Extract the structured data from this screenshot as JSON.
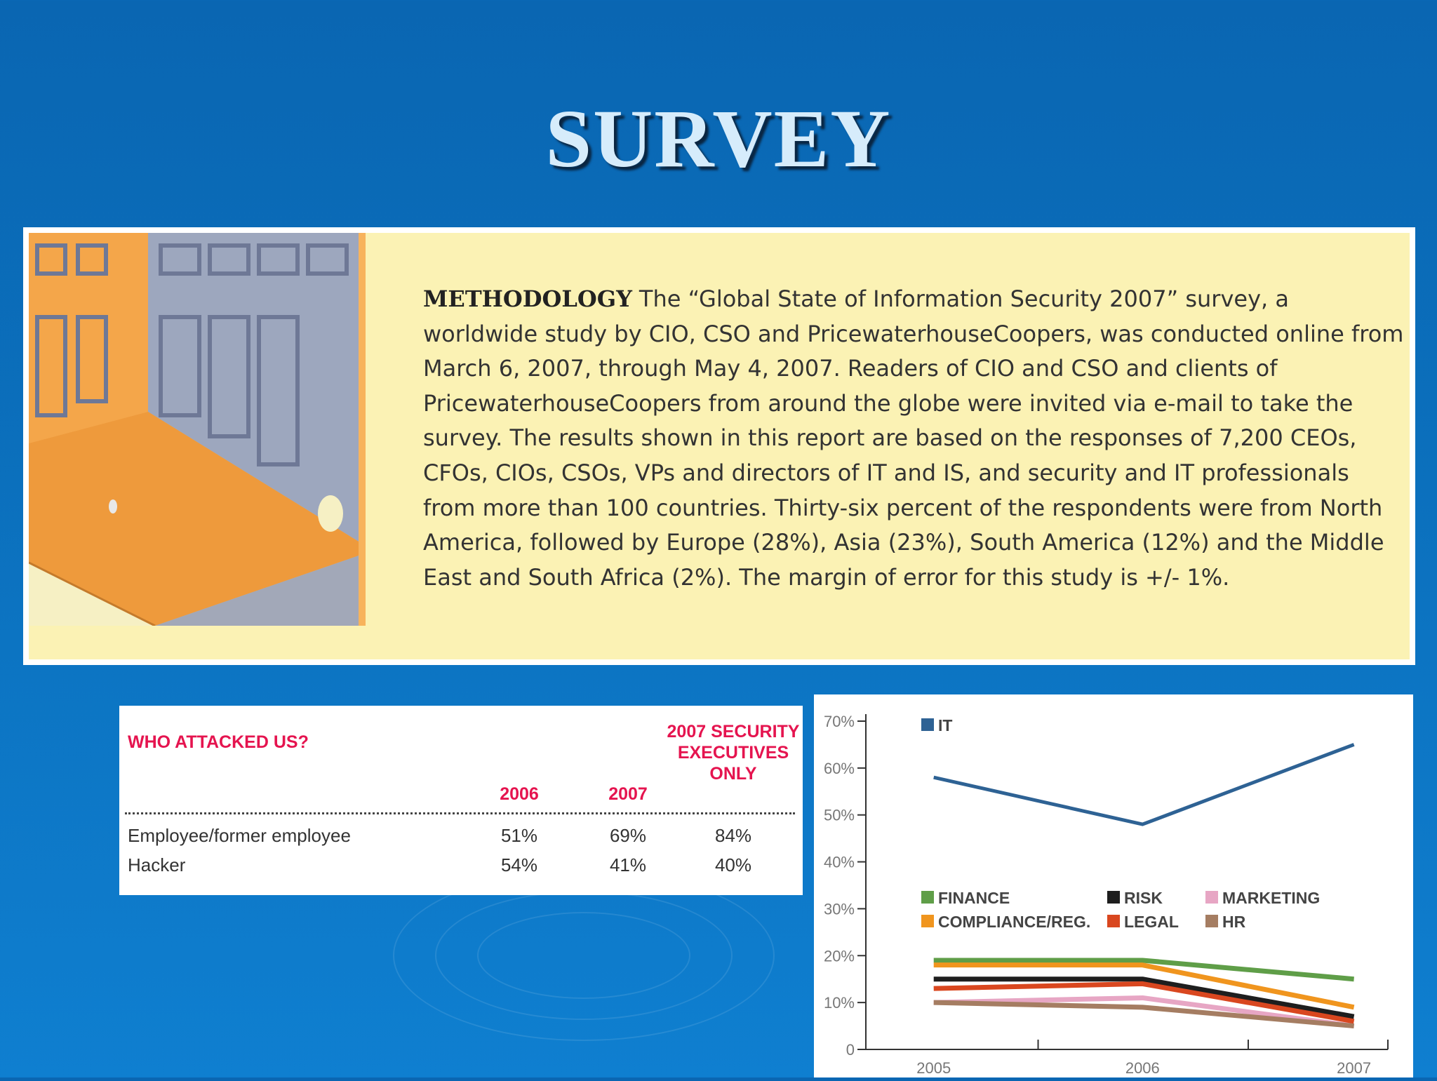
{
  "slide": {
    "title": "SURVEY"
  },
  "methodology": {
    "heading": "METHODOLOGY",
    "body": "The “Global State of Information Security 2007” survey, a worldwide study by CIO, CSO and PricewaterhouseCoopers, was conducted online from March 6, 2007, through May 4, 2007. Readers of CIO and CSO and clients of PricewaterhouseCoopers from around the globe were invited via e-mail to take the survey. The results shown in this report are based on the responses of 7,200 CEOs, CFOs, CIOs, CSOs, VPs and directors of IT and IS, and security and IT professionals from more than 100 countries. Thirty-six percent of the respondents were from North America, followed by Europe (28%), Asia (23%), South America (12%) and the Middle East and South Africa (2%). The margin of error for this study is +/- 1%."
  },
  "attack_table": {
    "title": "WHO ATTACKED US?",
    "columns": [
      "2006",
      "2007",
      "2007 SECURITY EXECUTIVES ONLY"
    ],
    "rows": [
      {
        "label": "Employee/former employee",
        "values": [
          "51%",
          "69%",
          "84%"
        ]
      },
      {
        "label": "Hacker",
        "values": [
          "54%",
          "41%",
          "40%"
        ]
      }
    ],
    "accent_color": "#e5144f"
  },
  "chart_data": {
    "type": "line",
    "x": [
      "2005",
      "2006",
      "2007"
    ],
    "y_ticks": [
      "0",
      "10%",
      "20%",
      "30%",
      "40%",
      "50%",
      "60%",
      "70%"
    ],
    "ylim": [
      0,
      70
    ],
    "series": [
      {
        "name": "IT",
        "color": "#2e6294",
        "values": [
          58,
          48,
          65
        ]
      },
      {
        "name": "FINANCE",
        "color": "#5f9e48",
        "values": [
          19,
          19,
          15
        ]
      },
      {
        "name": "RISK",
        "color": "#1e1e1e",
        "values": [
          15,
          15,
          7
        ]
      },
      {
        "name": "MARKETING",
        "color": "#e7a6c4",
        "values": [
          10,
          11,
          5
        ]
      },
      {
        "name": "COMPLIANCE/REG.",
        "color": "#f0951e",
        "values": [
          18,
          18,
          9
        ]
      },
      {
        "name": "LEGAL",
        "color": "#d9471f",
        "values": [
          13,
          14,
          6
        ]
      },
      {
        "name": "HR",
        "color": "#a57d62",
        "values": [
          10,
          9,
          5
        ]
      }
    ]
  }
}
